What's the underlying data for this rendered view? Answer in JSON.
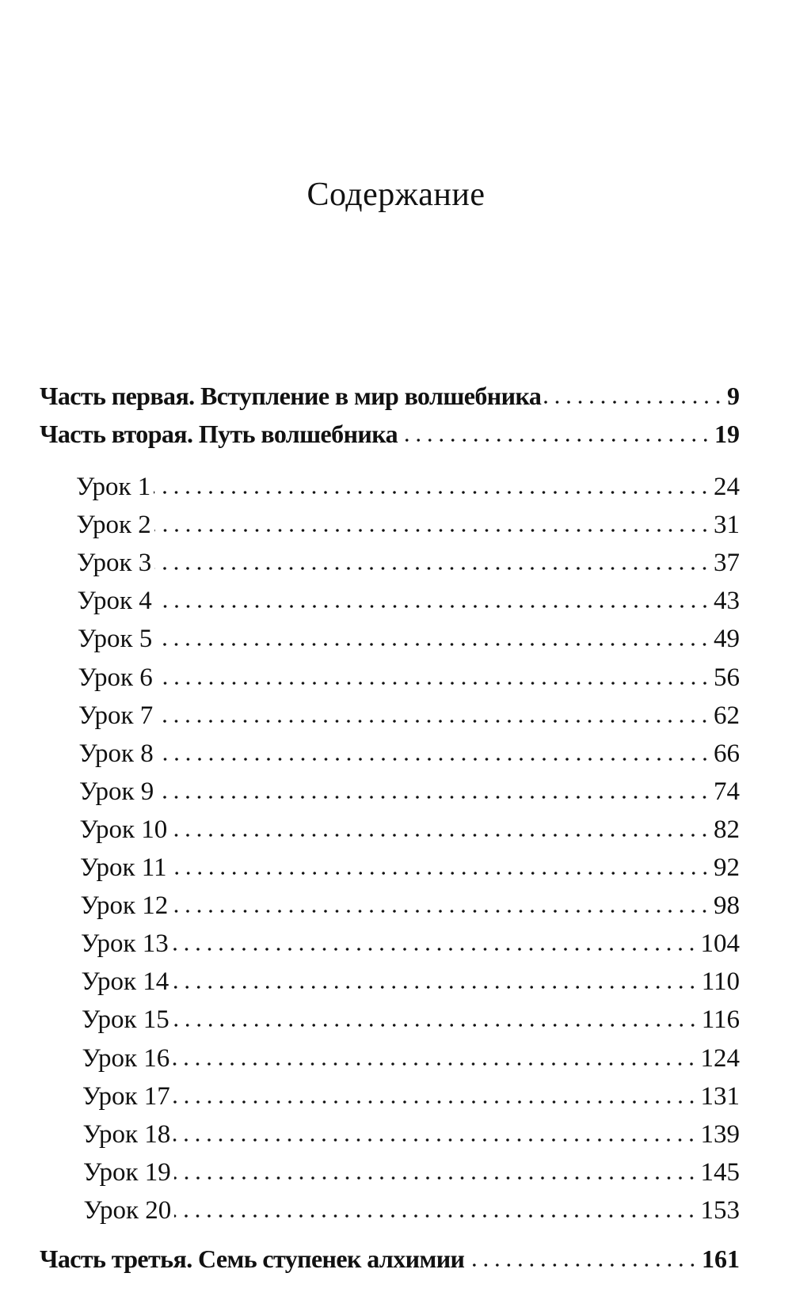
{
  "title": "Содержание",
  "entries": [
    {
      "type": "part",
      "label": "Часть первая. Вступление в мир волшебника",
      "page": "9"
    },
    {
      "type": "part",
      "label": "Часть вторая. Путь волшебника",
      "page": "19"
    },
    {
      "type": "lesson",
      "label": "Урок 1",
      "page": "24"
    },
    {
      "type": "lesson",
      "label": "Урок 2",
      "page": "31"
    },
    {
      "type": "lesson",
      "label": "Урок 3",
      "page": "37"
    },
    {
      "type": "lesson",
      "label": "Урок 4",
      "page": "43"
    },
    {
      "type": "lesson",
      "label": "Урок 5",
      "page": "49"
    },
    {
      "type": "lesson",
      "label": "Урок 6",
      "page": "56"
    },
    {
      "type": "lesson",
      "label": "Урок 7",
      "page": "62"
    },
    {
      "type": "lesson",
      "label": "Урок 8",
      "page": "66"
    },
    {
      "type": "lesson",
      "label": "Урок 9",
      "page": "74"
    },
    {
      "type": "lesson",
      "label": "Урок 10",
      "page": "82"
    },
    {
      "type": "lesson",
      "label": "Урок 11",
      "page": "92"
    },
    {
      "type": "lesson",
      "label": "Урок 12",
      "page": "98"
    },
    {
      "type": "lesson",
      "label": "Урок 13",
      "page": "104"
    },
    {
      "type": "lesson",
      "label": "Урок 14",
      "page": "110"
    },
    {
      "type": "lesson",
      "label": "Урок 15",
      "page": "116"
    },
    {
      "type": "lesson",
      "label": "Урок 16",
      "page": "124"
    },
    {
      "type": "lesson",
      "label": "Урок 17",
      "page": "131"
    },
    {
      "type": "lesson",
      "label": "Урок 18",
      "page": "139"
    },
    {
      "type": "lesson",
      "label": "Урок 19",
      "page": "145"
    },
    {
      "type": "lesson",
      "label": "Урок 20",
      "page": "153"
    },
    {
      "type": "part",
      "label": "Часть третья. Семь ступенек алхимии",
      "page": "161"
    }
  ]
}
